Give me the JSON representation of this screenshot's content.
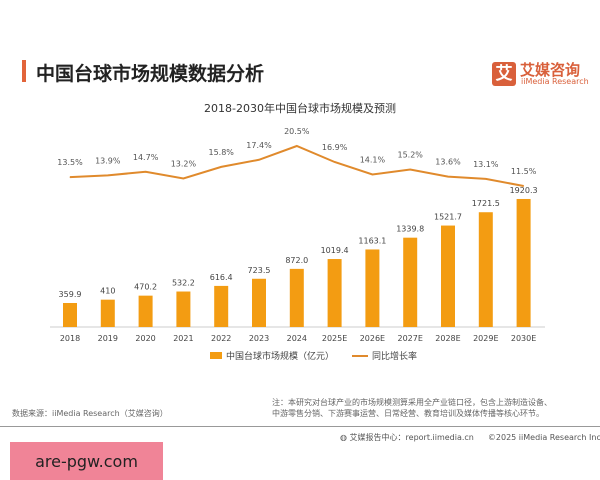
{
  "header": {
    "title": "中国台球市场规模数据分析",
    "logo_mark": "艾",
    "logo_cn": "艾媒咨询",
    "logo_en": "iiMedia Research"
  },
  "chart_data": {
    "type": "bar+line",
    "title": "2018-2030年中国台球市场规模及预测",
    "categories": [
      "2018",
      "2019",
      "2020",
      "2021",
      "2022",
      "2023",
      "2024",
      "2025E",
      "2026E",
      "2027E",
      "2028E",
      "2029E",
      "2030E"
    ],
    "series": [
      {
        "name": "中国台球市场规模（亿元）",
        "type": "bar",
        "color": "#f39c12",
        "values": [
          359.9,
          410,
          470.2,
          532.2,
          616.4,
          723.5,
          872.0,
          1019.4,
          1163.1,
          1339.8,
          1521.7,
          1721.5,
          1920.3
        ],
        "labels": [
          "359.9",
          "410",
          "470.2",
          "532.2",
          "616.4",
          "723.5",
          "872.0",
          "1019.4",
          "1163.1",
          "1339.8",
          "1521.7",
          "1721.5",
          "1920.3"
        ]
      },
      {
        "name": "同比增长率",
        "type": "line",
        "color": "#e08a2c",
        "values": [
          13.5,
          13.9,
          14.7,
          13.2,
          15.8,
          17.4,
          20.5,
          16.9,
          14.1,
          15.2,
          13.6,
          13.1,
          11.5
        ],
        "labels": [
          "13.5%",
          "13.9%",
          "14.7%",
          "13.2%",
          "15.8%",
          "17.4%",
          "20.5%",
          "16.9%",
          "14.1%",
          "15.2%",
          "13.6%",
          "13.1%",
          "11.5%"
        ]
      }
    ],
    "legend": "bottom"
  },
  "footer": {
    "source": "数据来源：iiMedia Research（艾媒咨询）",
    "note_1": "注：本研究对台球产业的市场规模测算采用全产业链口径，包含上游制造设备、",
    "note_2": "中游零售分销、下游赛事运营、日常经营、教育培训及媒体传播等核心环节。",
    "report_center": "艾媒报告中心：report.iimedia.cn",
    "copyright": "©2025  iiMedia Research  Inc",
    "watermark": "are-pgw.com"
  }
}
